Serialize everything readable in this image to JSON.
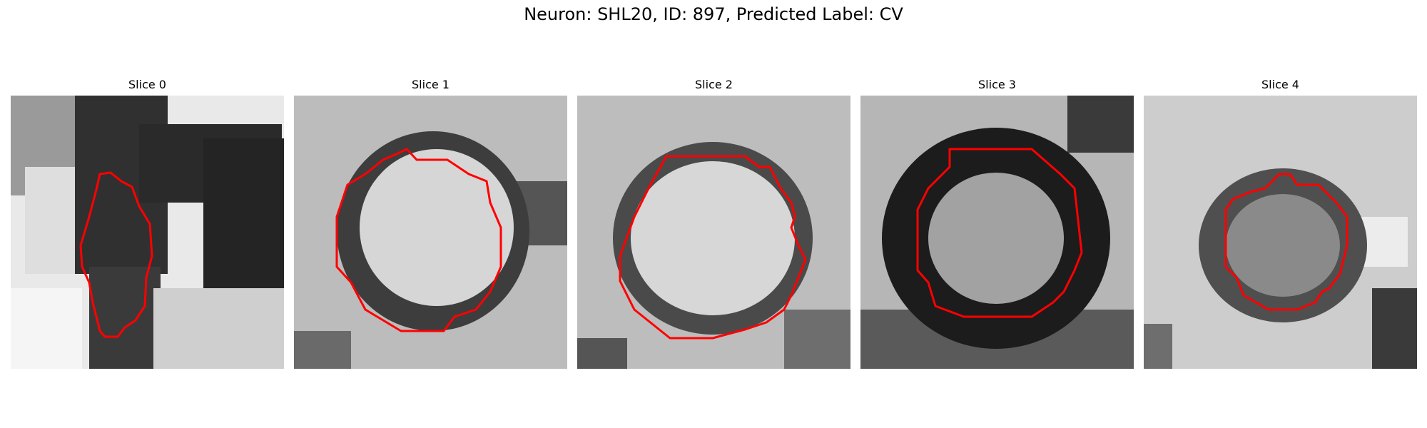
{
  "figure": {
    "title": "Neuron: SHL20, ID: 897, Predicted Label: CV"
  },
  "colors": {
    "background": "#ffffff",
    "contour": "#ff0000"
  },
  "panels": [
    {
      "title": "Slice 0"
    },
    {
      "title": "Slice 1"
    },
    {
      "title": "Slice 2"
    },
    {
      "title": "Slice 3"
    },
    {
      "title": "Slice 4"
    }
  ]
}
